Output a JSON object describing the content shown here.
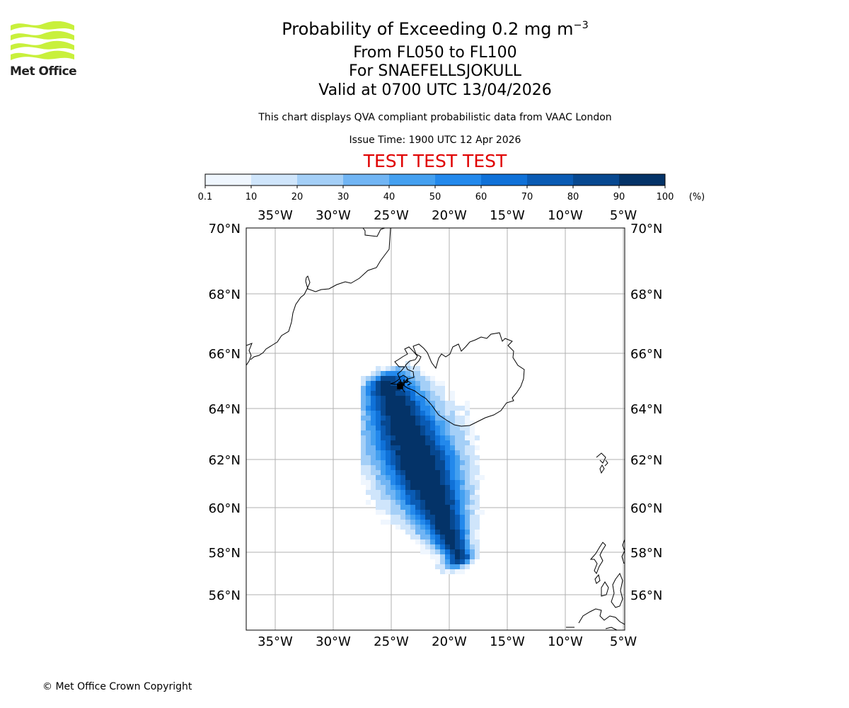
{
  "header": {
    "title_prefix": "Probability of Exceeding 0.2 mg m",
    "title_exponent": "−3",
    "flight_levels": "From FL050 to FL100",
    "volcano": "For SNAEFELLSJOKULL",
    "valid_time": "Valid at 0700 UTC 13/04/2026",
    "subtitle": "This chart displays QVA compliant probabilistic data from VAAC London",
    "issue_time": "Issue Time: 1900 UTC 12 Apr 2026",
    "test_banner": "TEST TEST TEST",
    "test_color": "#e00000"
  },
  "logo": {
    "text": "Met Office",
    "color": "#c8f03c"
  },
  "footer": {
    "copyright": "© Met Office Crown Copyright"
  },
  "colorbar": {
    "unit": "(%)",
    "ticks": [
      "0.1",
      "10",
      "20",
      "30",
      "40",
      "50",
      "60",
      "70",
      "80",
      "90",
      "100"
    ],
    "colors": [
      "#eff6fe",
      "#cfe5fb",
      "#a4cff7",
      "#71b5f4",
      "#44a0f0",
      "#2389ec",
      "#0f71d8",
      "#0a5bb4",
      "#074890",
      "#043368"
    ]
  },
  "map": {
    "lon_labels": [
      "35°W",
      "30°W",
      "25°W",
      "20°W",
      "15°W",
      "10°W",
      "5°W"
    ],
    "lat_labels": [
      "70°N",
      "68°N",
      "66°N",
      "64°N",
      "62°N",
      "60°N",
      "58°N",
      "56°N"
    ],
    "volcano_marker": "flag-icon"
  }
}
